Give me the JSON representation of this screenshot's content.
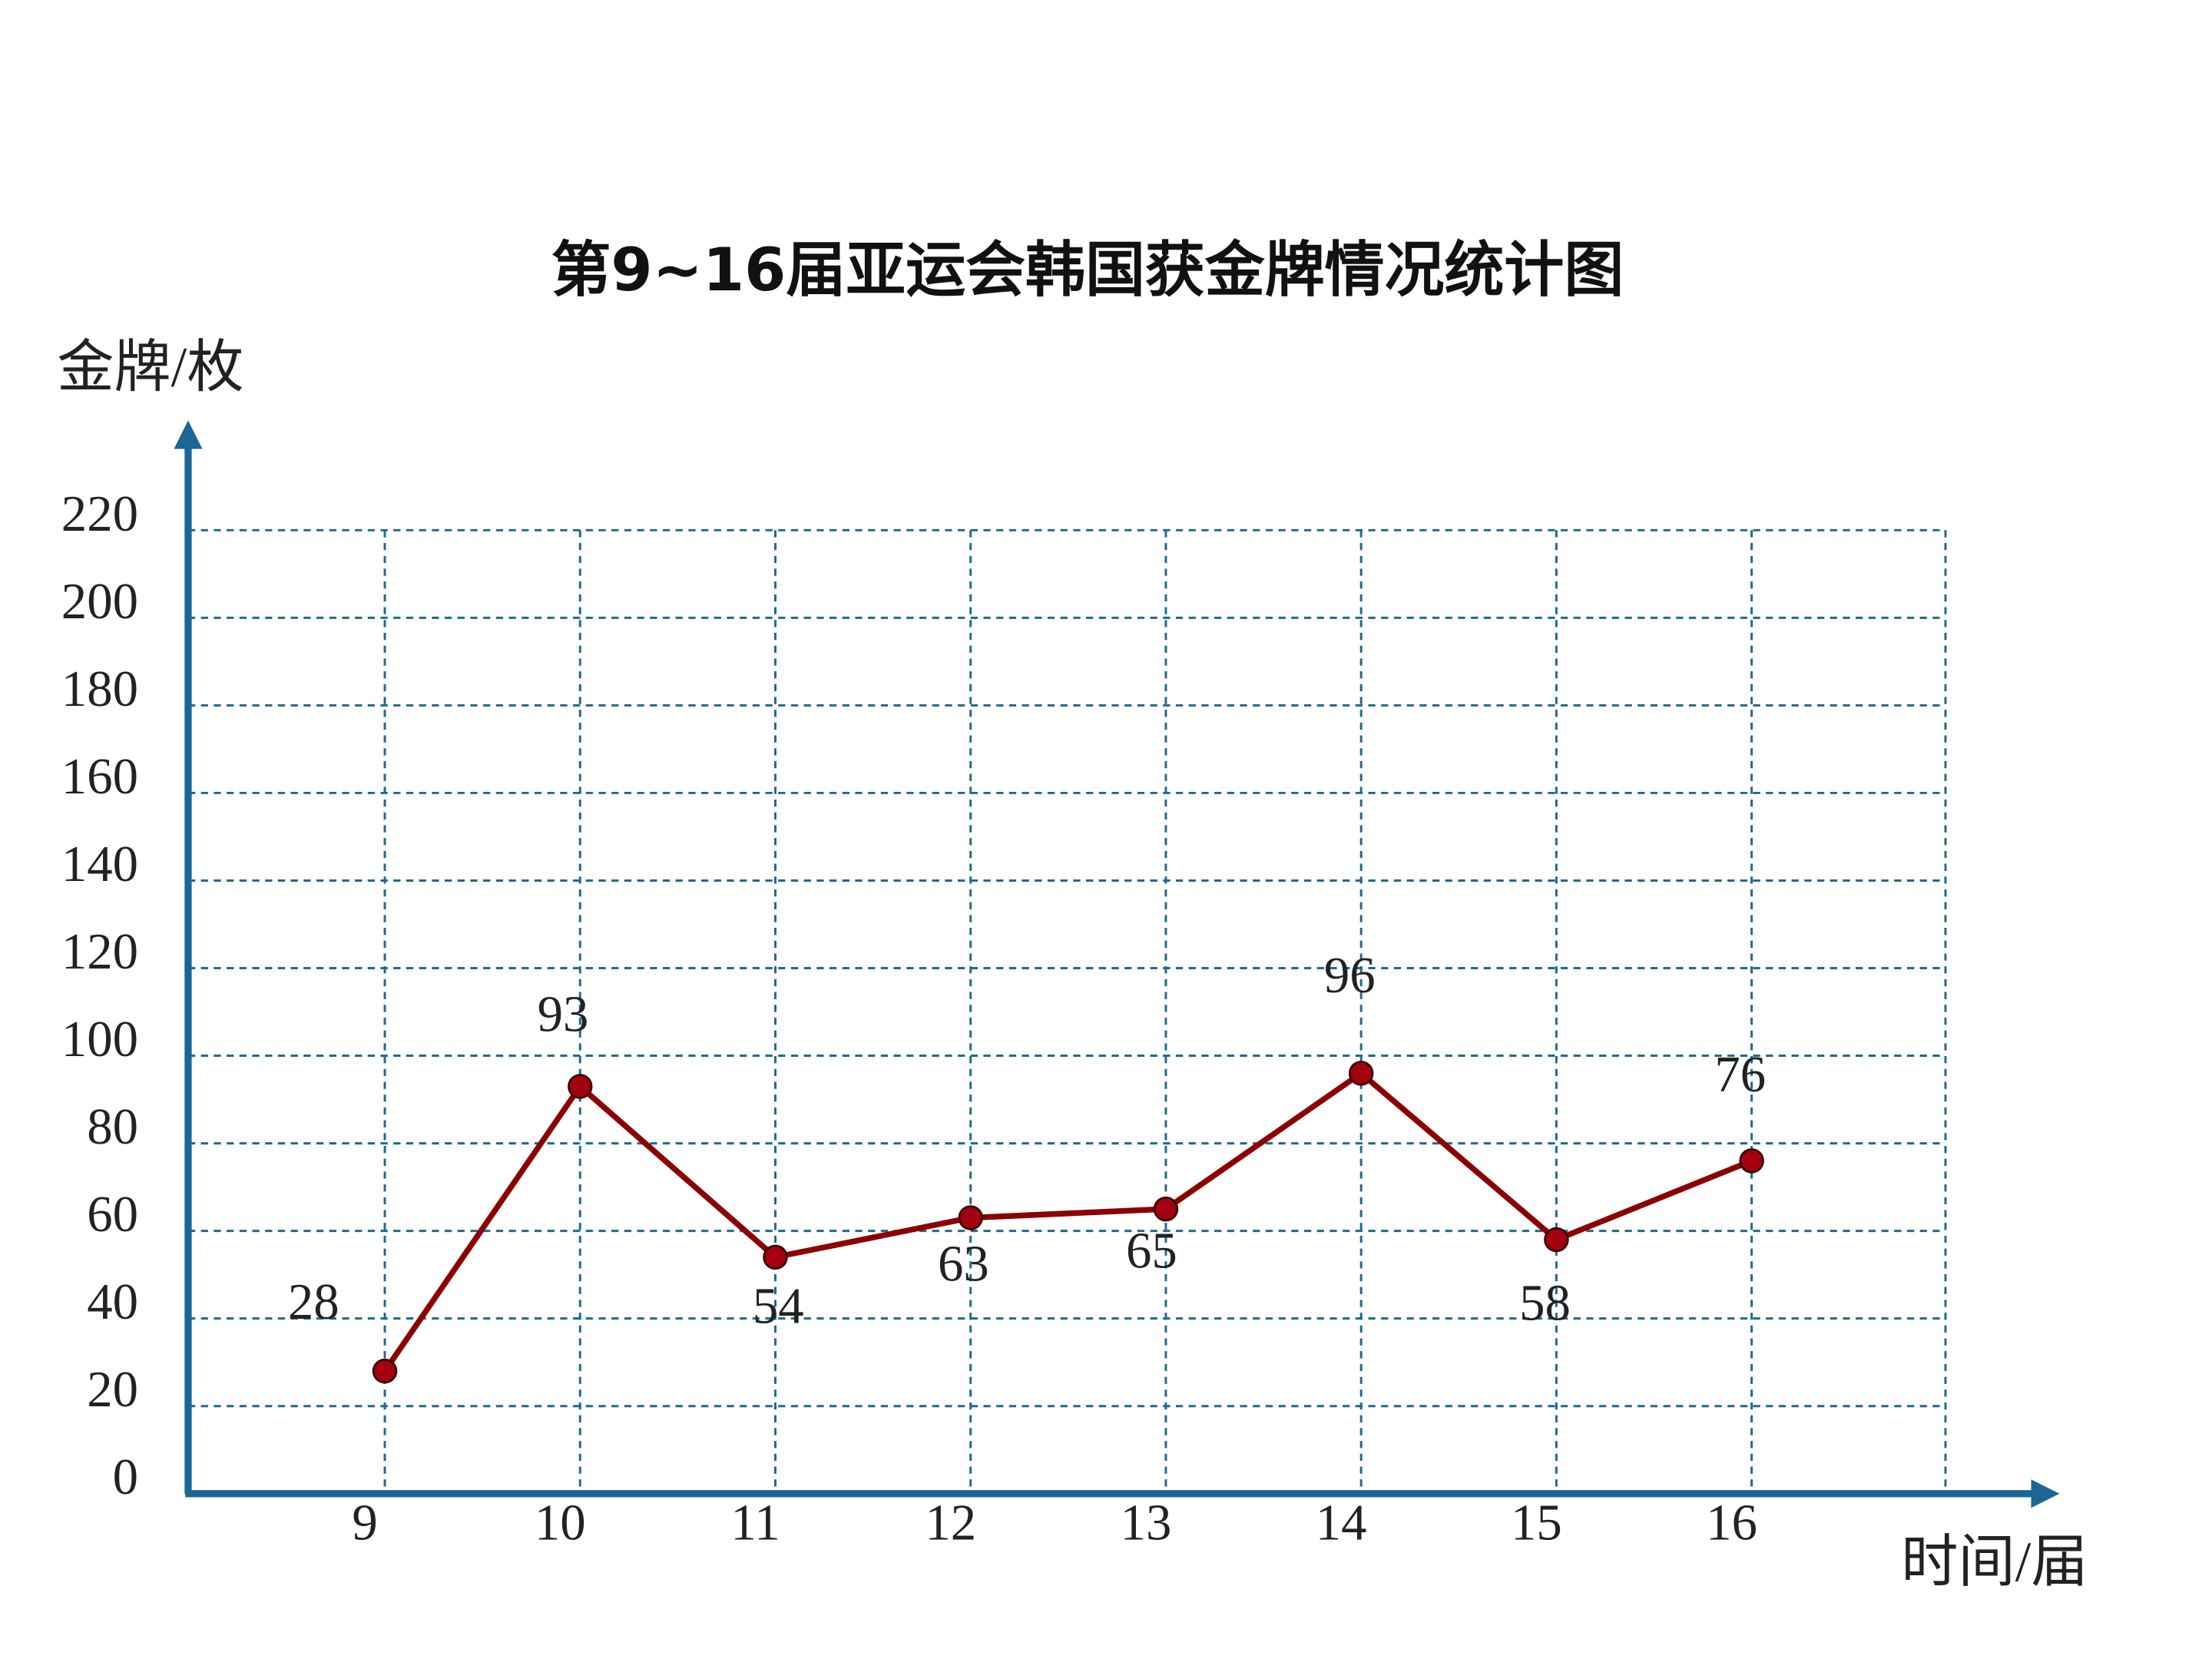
{
  "chart_data": {
    "type": "line",
    "title": "第9~16届亚运会韩国获金牌情况统计图",
    "y_label": "金牌/枚",
    "x_label": "时间/届",
    "categories": [
      "9",
      "10",
      "11",
      "12",
      "13",
      "14",
      "15",
      "16"
    ],
    "values": [
      28,
      93,
      54,
      63,
      65,
      96,
      58,
      76
    ],
    "color": "#8b0000",
    "ylim": [
      0,
      220
    ],
    "yticks": [
      0,
      20,
      40,
      60,
      80,
      100,
      120,
      140,
      160,
      180,
      200,
      220
    ],
    "grid": true
  }
}
